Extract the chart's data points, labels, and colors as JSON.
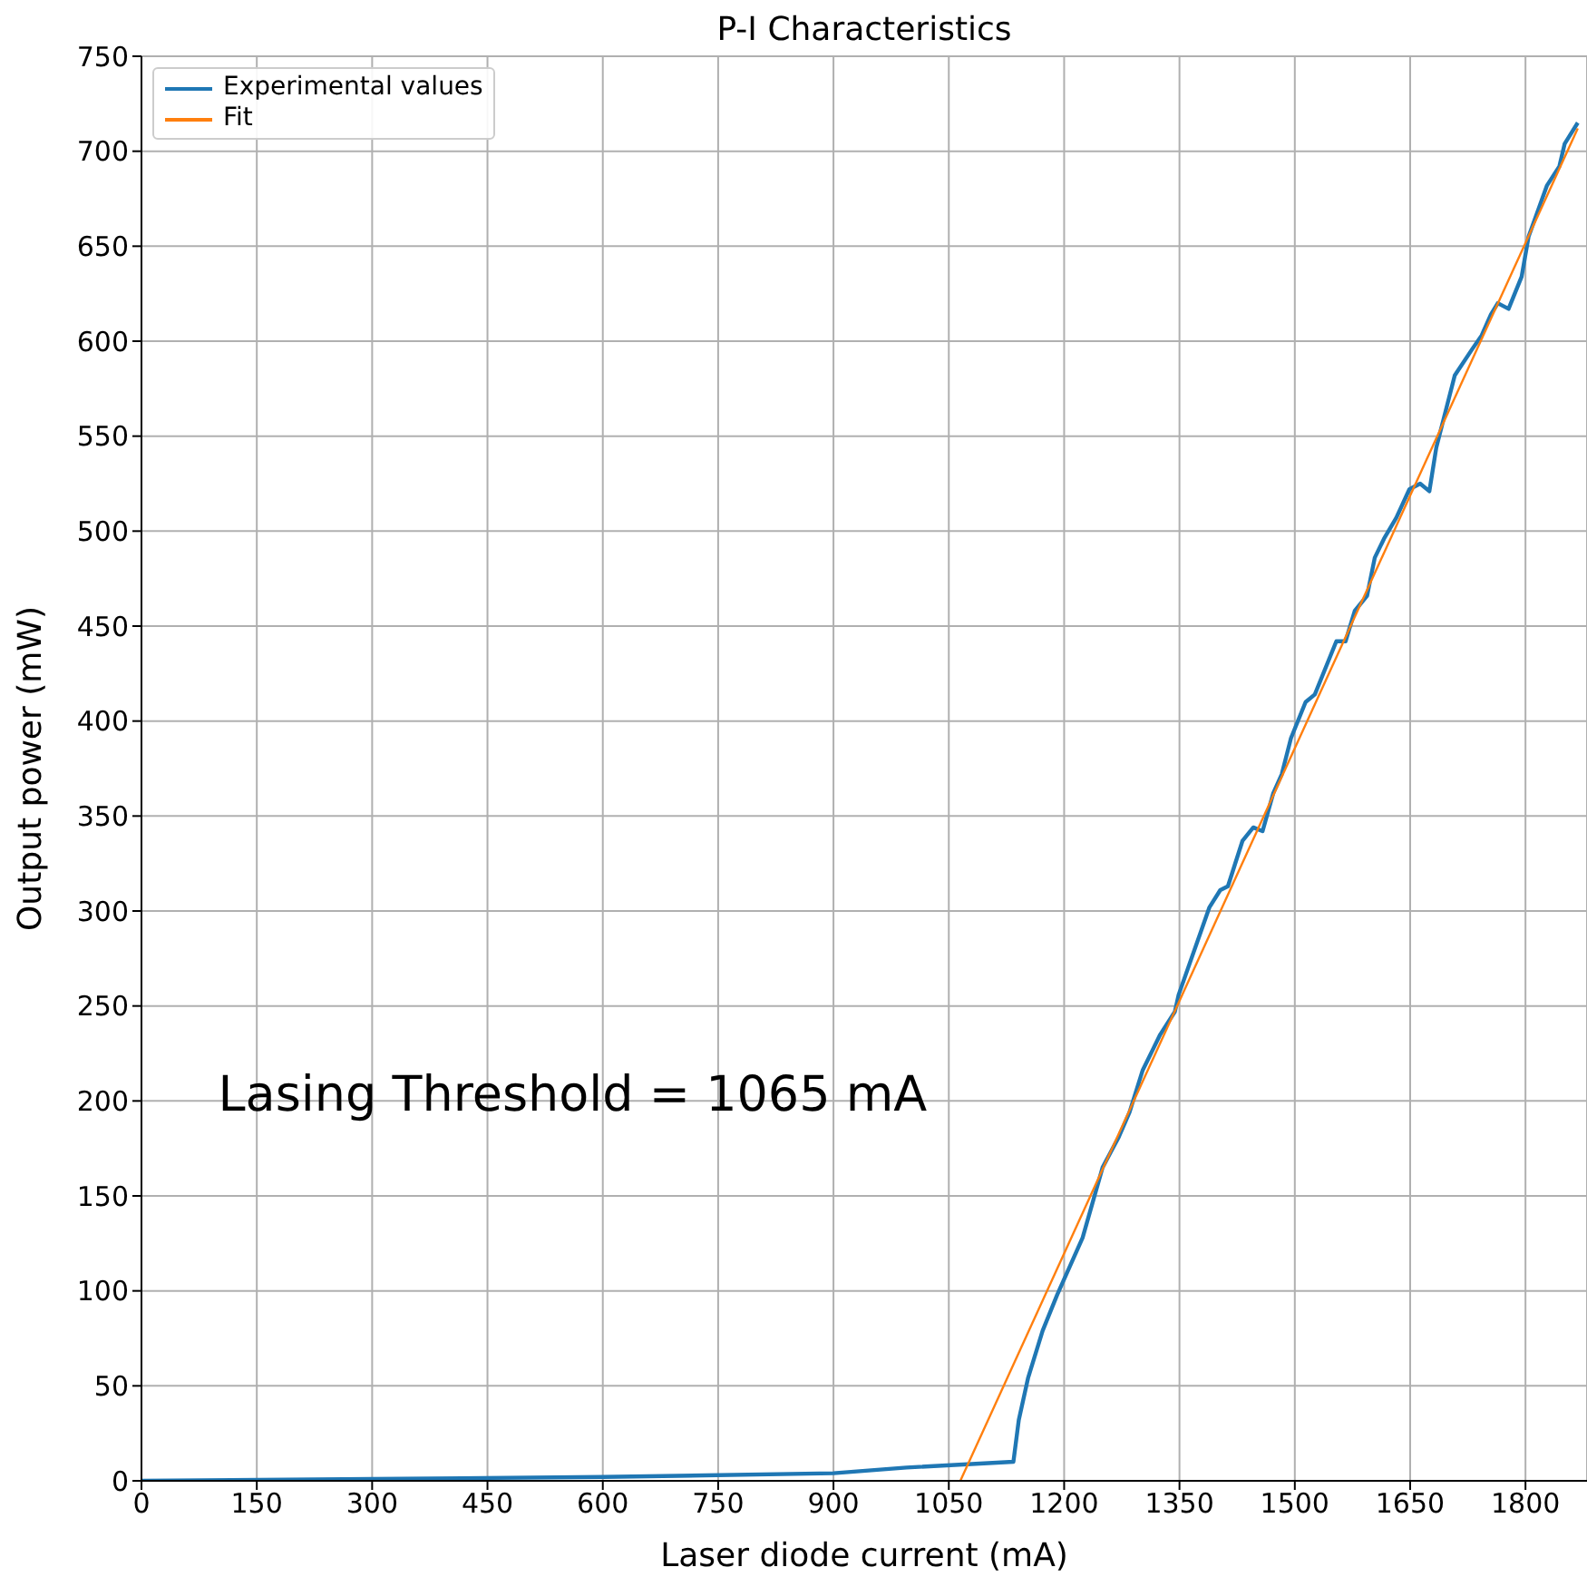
{
  "chart_data": {
    "type": "line",
    "title": "P-I Characteristics",
    "xlabel": "Laser diode current (mA)",
    "ylabel": "Output power (mW)",
    "annotations": [
      "Lasing Threshold = 1065 mA"
    ],
    "series": [
      {
        "name": "Experimental values",
        "color": "#1f77b4",
        "x": [
          0,
          300,
          600,
          900,
          995,
          1134,
          1141,
          1153,
          1172,
          1191,
          1224,
          1250,
          1271,
          1285,
          1302,
          1325,
          1344,
          1349,
          1389,
          1403,
          1413,
          1432,
          1446,
          1458,
          1472,
          1483,
          1495,
          1514,
          1526,
          1554,
          1566,
          1578,
          1594,
          1604,
          1616,
          1632,
          1649,
          1663,
          1675,
          1684,
          1696,
          1708,
          1731,
          1743,
          1755,
          1764,
          1778,
          1795,
          1804,
          1828,
          1844,
          1851,
          1868
        ],
        "values": [
          0,
          1,
          2,
          4,
          7,
          10,
          32,
          54,
          79,
          98,
          128,
          165,
          181,
          194,
          216,
          235,
          247,
          256,
          302,
          311,
          313,
          337,
          344,
          342,
          362,
          372,
          391,
          410,
          414,
          442,
          442,
          458,
          466,
          486,
          496,
          507,
          522,
          525,
          521,
          544,
          563,
          582,
          596,
          603,
          614,
          620,
          617,
          634,
          655,
          682,
          692,
          704,
          715
        ]
      },
      {
        "name": "Fit",
        "type": "line",
        "color": "#ff7f0e",
        "x": [
          1065,
          1868
        ],
        "values": [
          0,
          712
        ]
      }
    ],
    "xlim": [
      0,
      1880
    ],
    "xticks": [
      0,
      150,
      300,
      450,
      600,
      750,
      900,
      1050,
      1200,
      1350,
      1500,
      1650,
      1800
    ],
    "ylim": [
      0,
      750
    ],
    "yticks": [
      0,
      50,
      100,
      150,
      200,
      250,
      300,
      350,
      400,
      450,
      500,
      550,
      600,
      650,
      700,
      750
    ],
    "grid": true,
    "legend": "top left",
    "marker": "none",
    "line_style": "solid"
  }
}
